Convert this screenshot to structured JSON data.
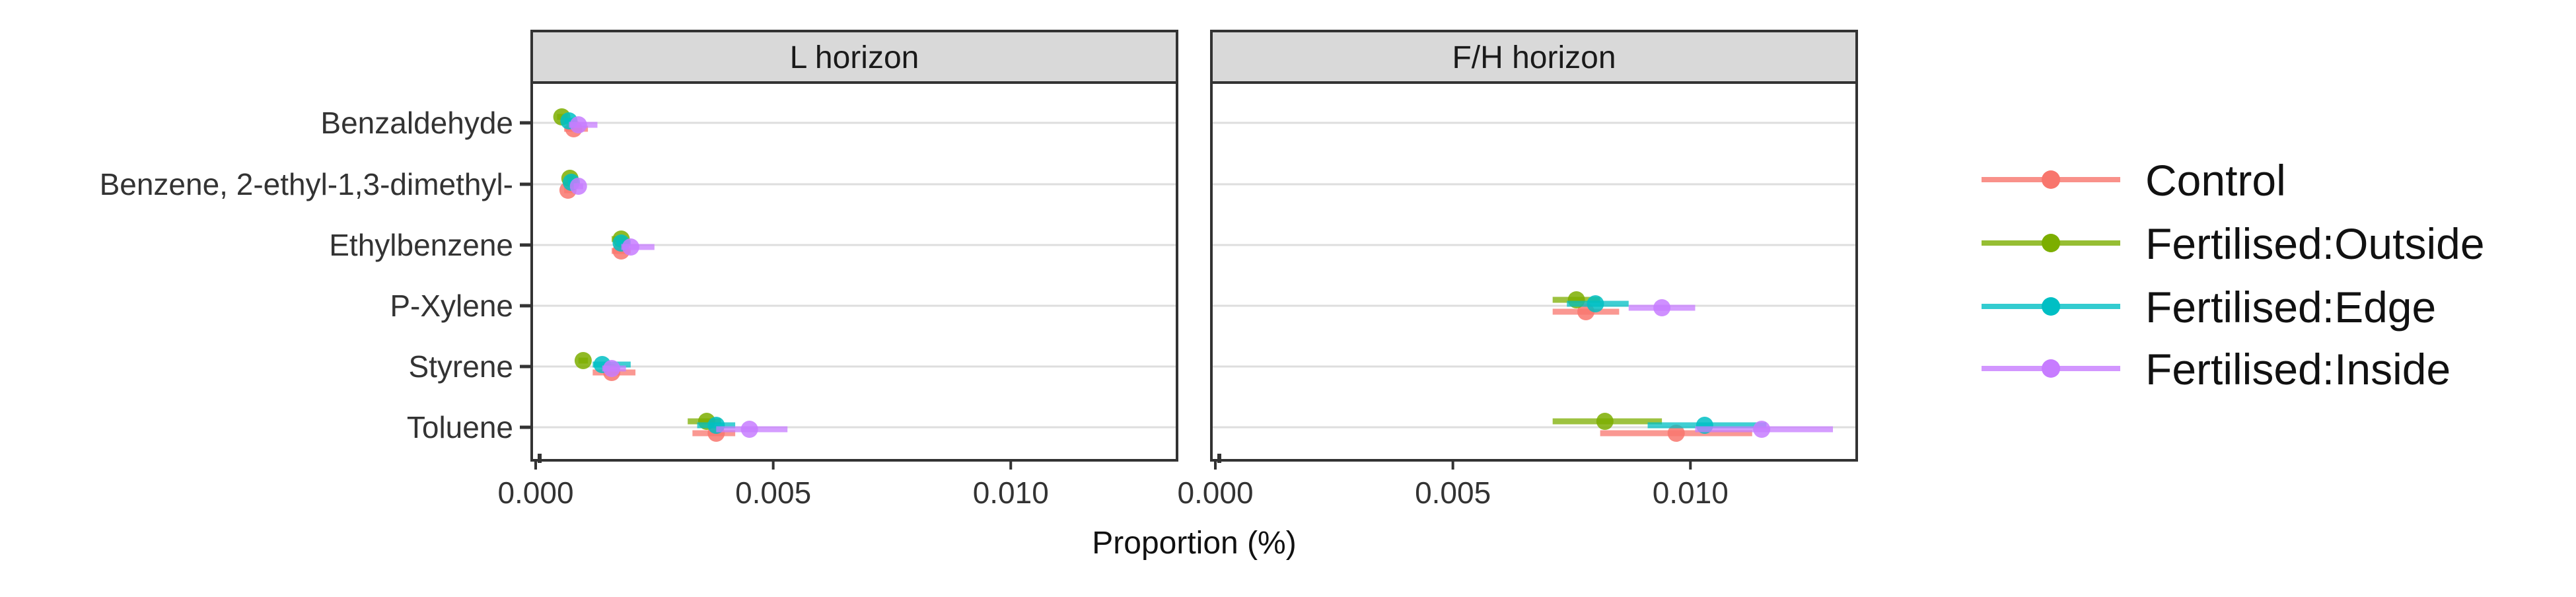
{
  "chart_data": {
    "type": "scatter",
    "facets": [
      "L horizon",
      "F/H horizon"
    ],
    "categories": [
      "Benzaldehyde",
      "Benzene, 2-ethyl-1,3-dimethyl-",
      "Ethylbenzene",
      "P-Xylene",
      "Styrene",
      "Toluene"
    ],
    "xlabel": "Proportion (%)",
    "xlim": [
      0,
      0.0135
    ],
    "xticks": [
      0,
      0.005,
      0.01
    ],
    "xtick_labels": [
      "0.000",
      "0.005",
      "0.010"
    ],
    "grid": true,
    "legend_position": "right",
    "series": [
      {
        "name": "Control",
        "color": "#F8766D",
        "points": [
          {
            "facet": "L horizon",
            "category": "Benzaldehyde",
            "x": 0.0008,
            "lo": 0.0006,
            "hi": 0.0011
          },
          {
            "facet": "L horizon",
            "category": "Benzene, 2-ethyl-1,3-dimethyl-",
            "x": 0.00068,
            "lo": 0.0006,
            "hi": 0.00078
          },
          {
            "facet": "L horizon",
            "category": "Ethylbenzene",
            "x": 0.0018,
            "lo": 0.0016,
            "hi": 0.002
          },
          {
            "facet": "L horizon",
            "category": "Styrene",
            "x": 0.0016,
            "lo": 0.0012,
            "hi": 0.0021
          },
          {
            "facet": "L horizon",
            "category": "Toluene",
            "x": 0.0038,
            "lo": 0.0033,
            "hi": 0.0042
          },
          {
            "facet": "F/H horizon",
            "category": "P-Xylene",
            "x": 0.0078,
            "lo": 0.0071,
            "hi": 0.0085
          },
          {
            "facet": "F/H horizon",
            "category": "Toluene",
            "x": 0.0097,
            "lo": 0.0081,
            "hi": 0.0113
          }
        ]
      },
      {
        "name": "Fertilised:Outside",
        "color": "#7CAE00",
        "points": [
          {
            "facet": "L horizon",
            "category": "Benzaldehyde",
            "x": 0.00055,
            "lo": 0.00045,
            "hi": 0.00068
          },
          {
            "facet": "L horizon",
            "category": "Benzene, 2-ethyl-1,3-dimethyl-",
            "x": 0.00072,
            "lo": 0.00065,
            "hi": 0.0008
          },
          {
            "facet": "L horizon",
            "category": "Ethylbenzene",
            "x": 0.0018,
            "lo": 0.0016,
            "hi": 0.0019
          },
          {
            "facet": "L horizon",
            "category": "Styrene",
            "x": 0.001,
            "lo": 0.0009,
            "hi": 0.0011
          },
          {
            "facet": "L horizon",
            "category": "Toluene",
            "x": 0.0036,
            "lo": 0.0032,
            "hi": 0.0039
          },
          {
            "facet": "F/H horizon",
            "category": "P-Xylene",
            "x": 0.0076,
            "lo": 0.0071,
            "hi": 0.0081
          },
          {
            "facet": "F/H horizon",
            "category": "Toluene",
            "x": 0.0082,
            "lo": 0.0071,
            "hi": 0.0094
          }
        ]
      },
      {
        "name": "Fertilised:Edge",
        "color": "#00BFC4",
        "points": [
          {
            "facet": "L horizon",
            "category": "Benzaldehyde",
            "x": 0.0007,
            "lo": 0.0006,
            "hi": 0.0008
          },
          {
            "facet": "L horizon",
            "category": "Benzene, 2-ethyl-1,3-dimethyl-",
            "x": 0.00075,
            "lo": 0.00068,
            "hi": 0.00082
          },
          {
            "facet": "L horizon",
            "category": "Ethylbenzene",
            "x": 0.0018,
            "lo": 0.0017,
            "hi": 0.002
          },
          {
            "facet": "L horizon",
            "category": "Styrene",
            "x": 0.0014,
            "lo": 0.0012,
            "hi": 0.002
          },
          {
            "facet": "L horizon",
            "category": "Toluene",
            "x": 0.0038,
            "lo": 0.0034,
            "hi": 0.0042
          },
          {
            "facet": "F/H horizon",
            "category": "P-Xylene",
            "x": 0.008,
            "lo": 0.0074,
            "hi": 0.0087
          },
          {
            "facet": "F/H horizon",
            "category": "Toluene",
            "x": 0.0103,
            "lo": 0.0091,
            "hi": 0.0116
          }
        ]
      },
      {
        "name": "Fertilised:Inside",
        "color": "#C77CFF",
        "points": [
          {
            "facet": "L horizon",
            "category": "Benzaldehyde",
            "x": 0.0009,
            "lo": 0.0007,
            "hi": 0.0013
          },
          {
            "facet": "L horizon",
            "category": "Benzene, 2-ethyl-1,3-dimethyl-",
            "x": 0.0009,
            "lo": 0.0008,
            "hi": 0.001
          },
          {
            "facet": "L horizon",
            "category": "Ethylbenzene",
            "x": 0.002,
            "lo": 0.0018,
            "hi": 0.0025
          },
          {
            "facet": "L horizon",
            "category": "Styrene",
            "x": 0.0016,
            "lo": 0.0014,
            "hi": 0.0019
          },
          {
            "facet": "L horizon",
            "category": "Toluene",
            "x": 0.0045,
            "lo": 0.0038,
            "hi": 0.0053
          },
          {
            "facet": "F/H horizon",
            "category": "P-Xylene",
            "x": 0.0094,
            "lo": 0.0087,
            "hi": 0.0101
          },
          {
            "facet": "F/H horizon",
            "category": "Toluene",
            "x": 0.0115,
            "lo": 0.0101,
            "hi": 0.013
          }
        ]
      }
    ]
  }
}
